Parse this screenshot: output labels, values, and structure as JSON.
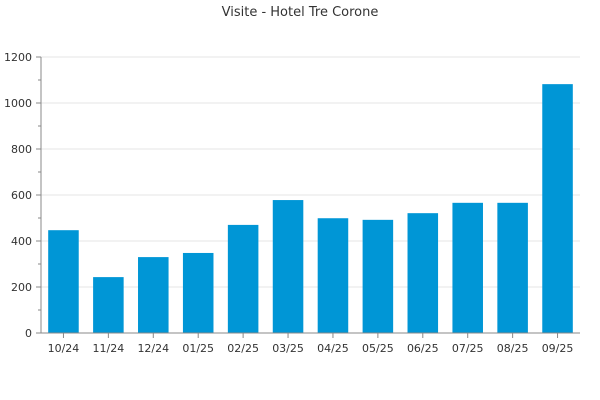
{
  "chart_data": {
    "type": "bar",
    "title": "Visite - Hotel Tre Corone",
    "xlabel": "",
    "ylabel": "",
    "categories": [
      "10/24",
      "11/24",
      "12/24",
      "01/25",
      "02/25",
      "03/25",
      "04/25",
      "05/25",
      "06/25",
      "07/25",
      "08/25",
      "09/25"
    ],
    "values": [
      447,
      243,
      330,
      348,
      470,
      578,
      499,
      492,
      521,
      566,
      566,
      1082
    ],
    "ylim": [
      0,
      1200
    ],
    "yticks": [
      0,
      200,
      400,
      600,
      800,
      1000,
      1200
    ],
    "grid": true,
    "bar_color": "#0096d6"
  }
}
